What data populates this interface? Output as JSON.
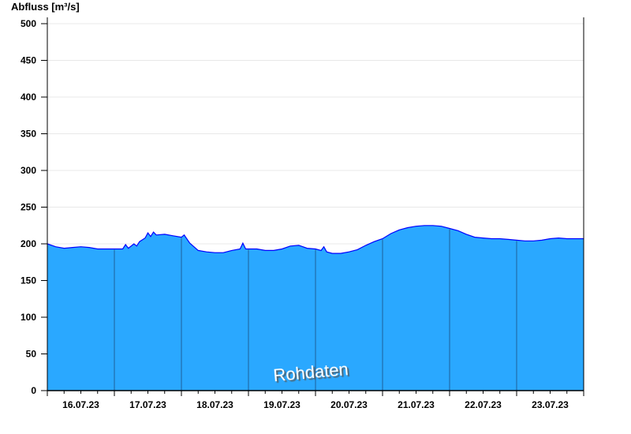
{
  "chart_data": {
    "type": "area",
    "title": "",
    "ylabel": "Abfluss [m³/s]",
    "xlabel": "",
    "ylim": [
      0,
      500
    ],
    "yticks": [
      0,
      50,
      100,
      150,
      200,
      250,
      300,
      350,
      400,
      450,
      500
    ],
    "xrange": [
      "2023-07-16T00:00",
      "2023-07-24T00:00"
    ],
    "xtick_labels": [
      "16.07.23",
      "17.07.23",
      "18.07.23",
      "19.07.23",
      "20.07.23",
      "21.07.23",
      "22.07.23",
      "23.07.23"
    ],
    "grid": true,
    "watermark": "Rohdaten",
    "colors": {
      "fill": "#2aa8ff",
      "line": "#0000ff",
      "day_separator": "#1f5f9a",
      "grid": "#e8e8e8"
    },
    "series": [
      {
        "points": [
          [
            "2023-07-16T00:00",
            200
          ],
          [
            "2023-07-16T03:00",
            196
          ],
          [
            "2023-07-16T06:00",
            194
          ],
          [
            "2023-07-16T09:00",
            195
          ],
          [
            "2023-07-16T12:00",
            196
          ],
          [
            "2023-07-16T15:00",
            195
          ],
          [
            "2023-07-16T18:00",
            193
          ],
          [
            "2023-07-16T21:00",
            193
          ],
          [
            "2023-07-17T00:00",
            193
          ],
          [
            "2023-07-17T03:00",
            193
          ],
          [
            "2023-07-17T04:00",
            199
          ],
          [
            "2023-07-17T05:00",
            194
          ],
          [
            "2023-07-17T07:00",
            200
          ],
          [
            "2023-07-17T08:00",
            197
          ],
          [
            "2023-07-17T09:00",
            203
          ],
          [
            "2023-07-17T11:00",
            208
          ],
          [
            "2023-07-17T12:00",
            215
          ],
          [
            "2023-07-17T13:00",
            210
          ],
          [
            "2023-07-17T14:00",
            216
          ],
          [
            "2023-07-17T15:00",
            212
          ],
          [
            "2023-07-17T18:00",
            213
          ],
          [
            "2023-07-17T21:00",
            211
          ],
          [
            "2023-07-18T00:00",
            209
          ],
          [
            "2023-07-18T01:00",
            212
          ],
          [
            "2023-07-18T03:00",
            201
          ],
          [
            "2023-07-18T06:00",
            191
          ],
          [
            "2023-07-18T09:00",
            189
          ],
          [
            "2023-07-18T12:00",
            188
          ],
          [
            "2023-07-18T15:00",
            188
          ],
          [
            "2023-07-18T18:00",
            191
          ],
          [
            "2023-07-18T21:00",
            193
          ],
          [
            "2023-07-18T22:00",
            201
          ],
          [
            "2023-07-18T23:00",
            193
          ],
          [
            "2023-07-19T00:00",
            193
          ],
          [
            "2023-07-19T03:00",
            193
          ],
          [
            "2023-07-19T06:00",
            191
          ],
          [
            "2023-07-19T09:00",
            191
          ],
          [
            "2023-07-19T12:00",
            193
          ],
          [
            "2023-07-19T15:00",
            197
          ],
          [
            "2023-07-19T18:00",
            198
          ],
          [
            "2023-07-19T21:00",
            194
          ],
          [
            "2023-07-20T00:00",
            193
          ],
          [
            "2023-07-20T02:00",
            191
          ],
          [
            "2023-07-20T03:00",
            196
          ],
          [
            "2023-07-20T04:00",
            189
          ],
          [
            "2023-07-20T06:00",
            187
          ],
          [
            "2023-07-20T09:00",
            187
          ],
          [
            "2023-07-20T12:00",
            189
          ],
          [
            "2023-07-20T15:00",
            192
          ],
          [
            "2023-07-20T18:00",
            198
          ],
          [
            "2023-07-20T21:00",
            203
          ],
          [
            "2023-07-21T00:00",
            207
          ],
          [
            "2023-07-21T03:00",
            214
          ],
          [
            "2023-07-21T06:00",
            219
          ],
          [
            "2023-07-21T09:00",
            222
          ],
          [
            "2023-07-21T12:00",
            224
          ],
          [
            "2023-07-21T15:00",
            225
          ],
          [
            "2023-07-21T18:00",
            225
          ],
          [
            "2023-07-21T21:00",
            224
          ],
          [
            "2023-07-22T00:00",
            221
          ],
          [
            "2023-07-22T03:00",
            218
          ],
          [
            "2023-07-22T06:00",
            213
          ],
          [
            "2023-07-22T09:00",
            209
          ],
          [
            "2023-07-22T12:00",
            208
          ],
          [
            "2023-07-22T15:00",
            207
          ],
          [
            "2023-07-22T18:00",
            207
          ],
          [
            "2023-07-22T21:00",
            206
          ],
          [
            "2023-07-23T00:00",
            205
          ],
          [
            "2023-07-23T03:00",
            204
          ],
          [
            "2023-07-23T06:00",
            204
          ],
          [
            "2023-07-23T09:00",
            205
          ],
          [
            "2023-07-23T12:00",
            207
          ],
          [
            "2023-07-23T15:00",
            208
          ],
          [
            "2023-07-23T18:00",
            207
          ],
          [
            "2023-07-23T21:00",
            207
          ],
          [
            "2023-07-24T00:00",
            207
          ]
        ]
      }
    ]
  }
}
